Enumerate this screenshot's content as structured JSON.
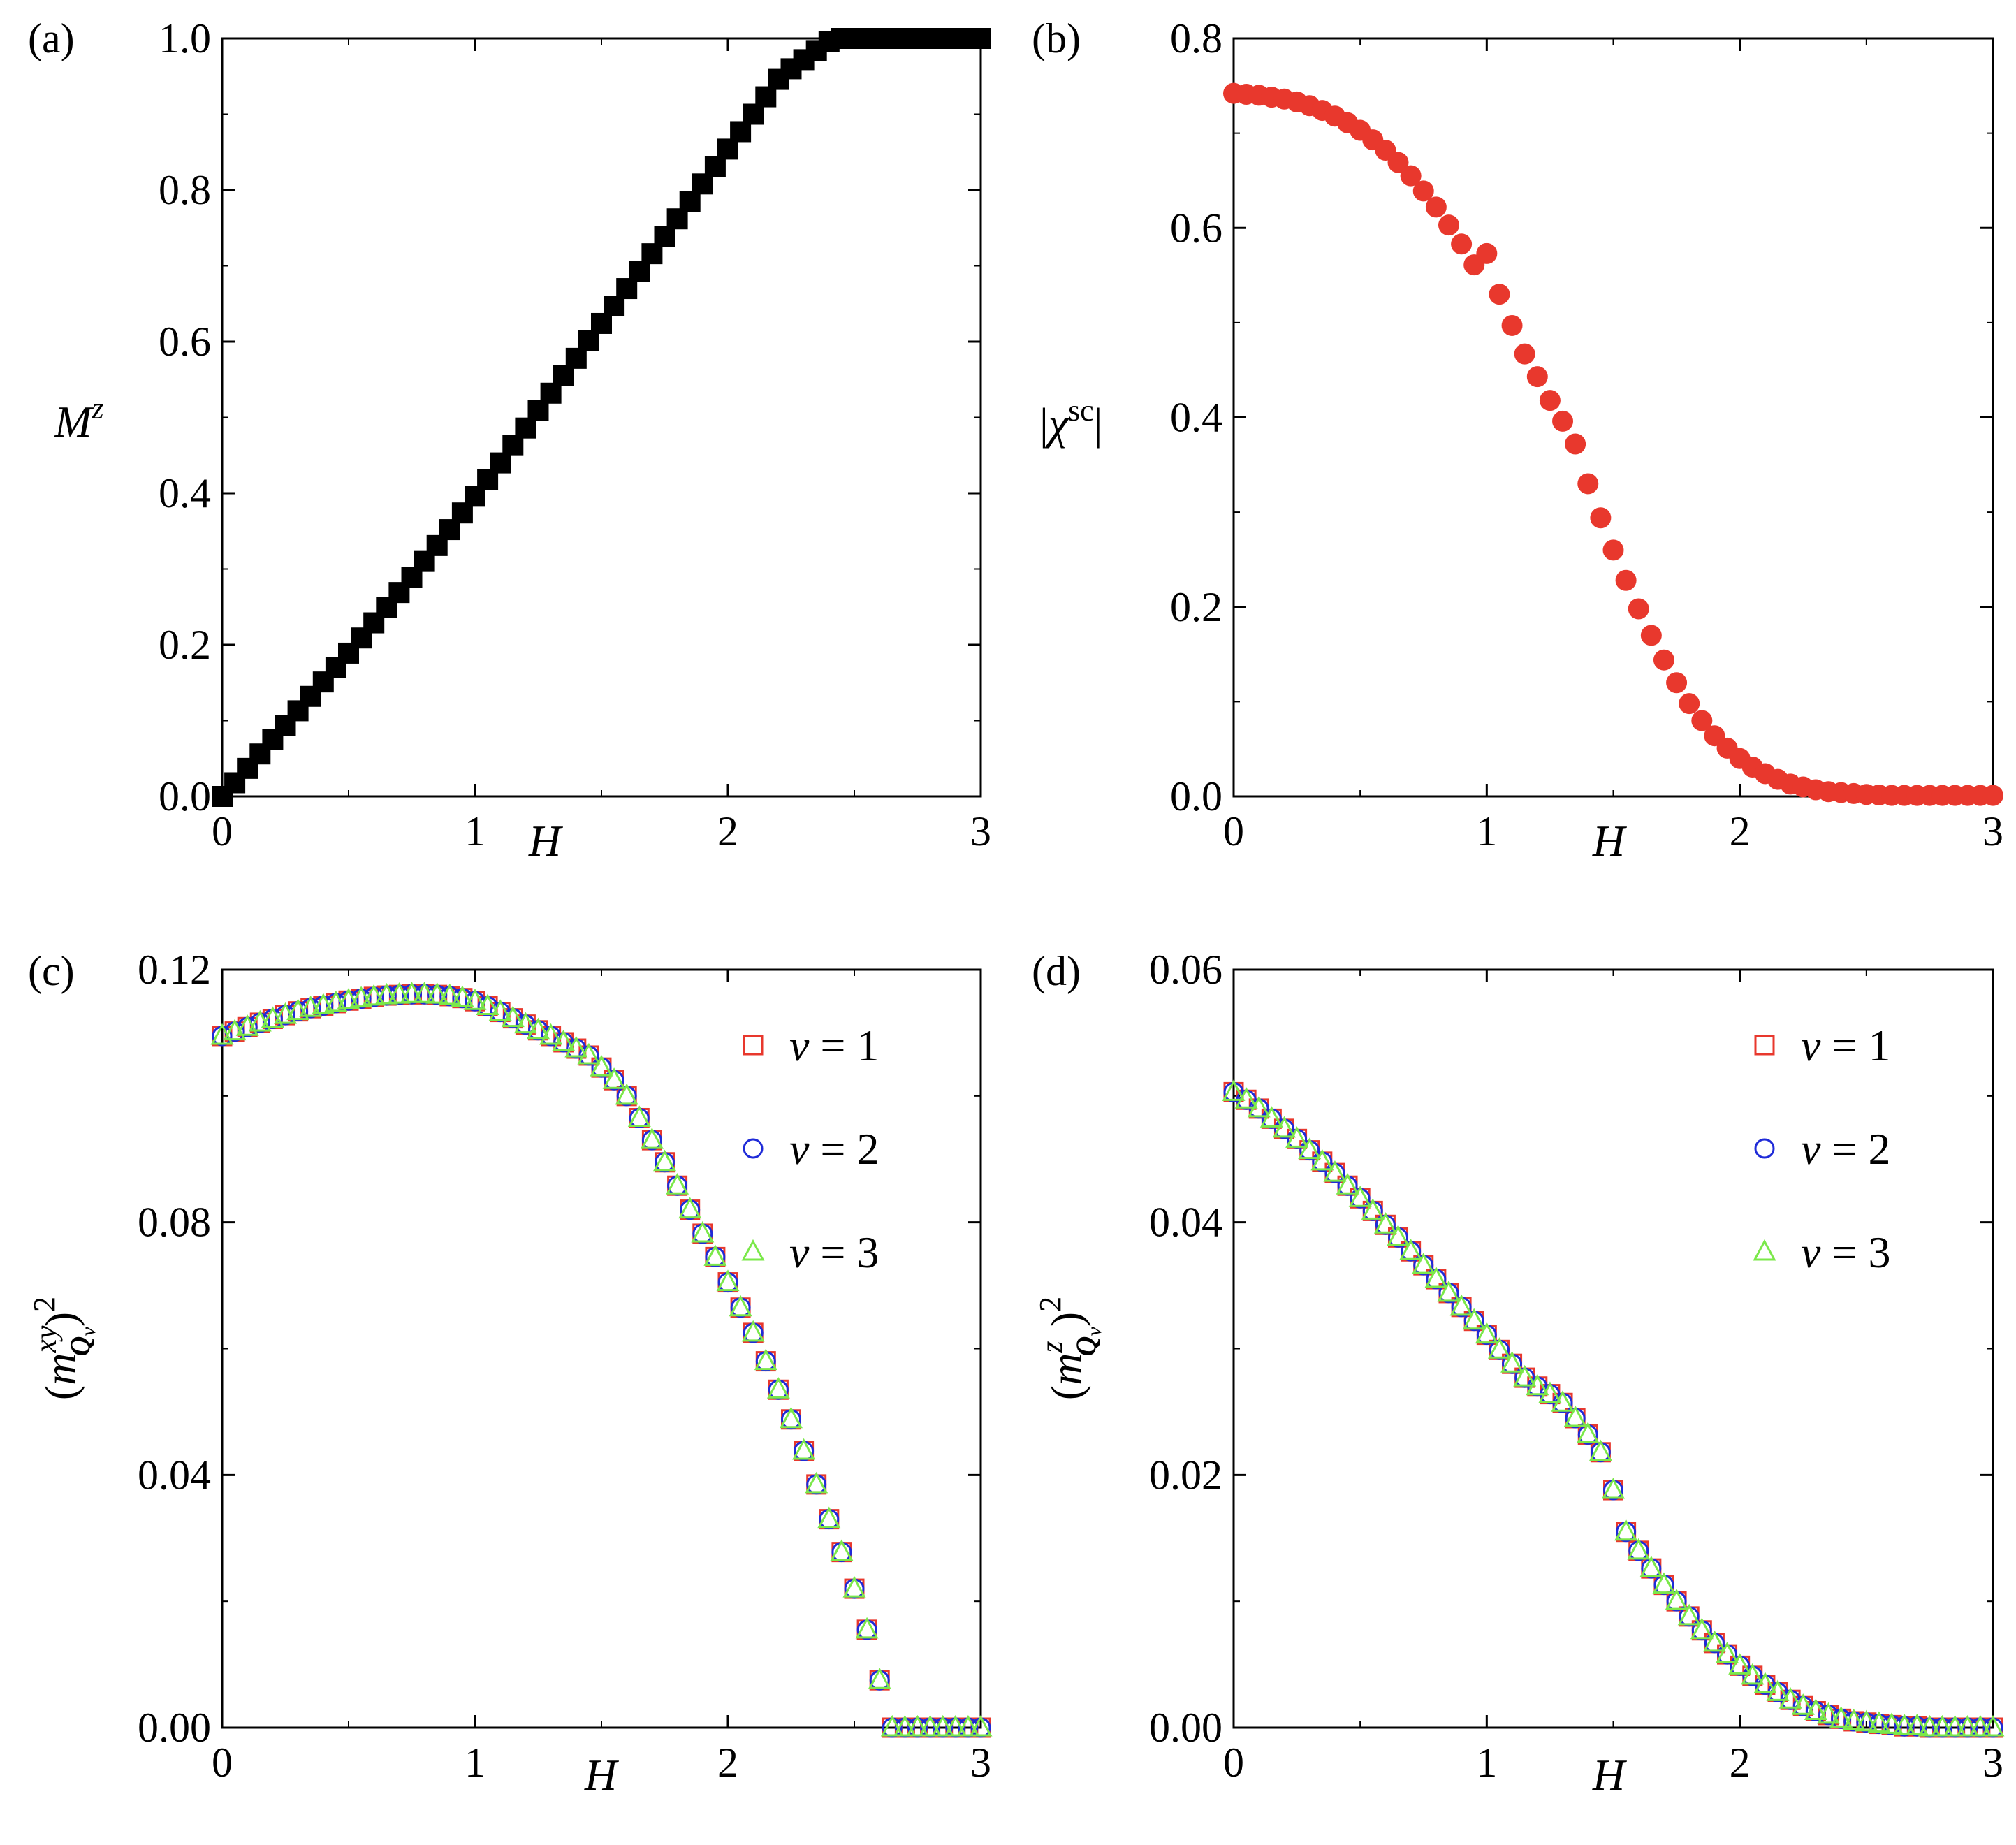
{
  "figure": {
    "panels": [
      {
        "id": "a",
        "label": "(a)",
        "ylabel": "Mz",
        "xlabel": "H"
      },
      {
        "id": "b",
        "label": "(b)",
        "ylabel": "|χsc|",
        "xlabel": "H"
      },
      {
        "id": "c",
        "label": "(c)",
        "ylabel": "(mxyQν)2",
        "xlabel": "H"
      },
      {
        "id": "d",
        "label": "(d)",
        "ylabel": "(mzQν)2",
        "xlabel": "H"
      }
    ]
  },
  "chart_data": [
    {
      "panel": "a",
      "type": "scatter",
      "title": "(a)",
      "xlabel": "H",
      "ylabel": "M^z",
      "xlim": [
        0,
        3
      ],
      "ylim": [
        0,
        1
      ],
      "xticks": [
        0,
        1,
        2,
        3
      ],
      "xtick_labels": [
        "0",
        "1",
        "2",
        "3"
      ],
      "yticks": [
        0,
        0.2,
        0.4,
        0.6,
        0.8,
        1.0
      ],
      "ytick_labels": [
        "0.0",
        "0.2",
        "0.4",
        "0.6",
        "0.8",
        "1.0"
      ],
      "grid": false,
      "series": [
        {
          "name": "M^z",
          "marker": "filled-square",
          "color": "#000000",
          "x": [
            0,
            0.05,
            0.1,
            0.15,
            0.2,
            0.25,
            0.3,
            0.35,
            0.4,
            0.45,
            0.5,
            0.55,
            0.6,
            0.65,
            0.7,
            0.75,
            0.8,
            0.85,
            0.9,
            0.95,
            1.0,
            1.05,
            1.1,
            1.15,
            1.2,
            1.25,
            1.3,
            1.35,
            1.4,
            1.45,
            1.5,
            1.55,
            1.6,
            1.65,
            1.7,
            1.75,
            1.8,
            1.85,
            1.9,
            1.95,
            2.0,
            2.05,
            2.1,
            2.15,
            2.2,
            2.25,
            2.3,
            2.35,
            2.4,
            2.45,
            2.5,
            2.55,
            2.6,
            2.65,
            2.7,
            2.75,
            2.8,
            2.85,
            2.9,
            2.95,
            3.0
          ],
          "y": [
            0.0,
            0.018,
            0.037,
            0.056,
            0.075,
            0.094,
            0.113,
            0.132,
            0.151,
            0.17,
            0.189,
            0.209,
            0.229,
            0.249,
            0.269,
            0.289,
            0.31,
            0.331,
            0.352,
            0.374,
            0.396,
            0.418,
            0.44,
            0.463,
            0.486,
            0.509,
            0.532,
            0.555,
            0.578,
            0.601,
            0.624,
            0.647,
            0.67,
            0.693,
            0.716,
            0.739,
            0.762,
            0.785,
            0.808,
            0.831,
            0.854,
            0.877,
            0.9,
            0.923,
            0.946,
            0.96,
            0.972,
            0.984,
            0.996,
            1.0,
            1.0,
            1.0,
            1.0,
            1.0,
            1.0,
            1.0,
            1.0,
            1.0,
            1.0,
            1.0,
            1.0
          ]
        }
      ]
    },
    {
      "panel": "b",
      "type": "scatter",
      "title": "(b)",
      "xlabel": "H",
      "ylabel": "|χ^sc|",
      "xlim": [
        0,
        3
      ],
      "ylim": [
        0,
        0.8
      ],
      "xticks": [
        0,
        1,
        2,
        3
      ],
      "xtick_labels": [
        "0",
        "1",
        "2",
        "3"
      ],
      "yticks": [
        0,
        0.2,
        0.4,
        0.6,
        0.8
      ],
      "ytick_labels": [
        "0.0",
        "0.2",
        "0.4",
        "0.6",
        "0.8"
      ],
      "grid": false,
      "series": [
        {
          "name": "|χ^sc|",
          "marker": "filled-circle",
          "color": "#e8382d",
          "x": [
            0,
            0.05,
            0.1,
            0.15,
            0.2,
            0.25,
            0.3,
            0.35,
            0.4,
            0.45,
            0.5,
            0.55,
            0.6,
            0.65,
            0.7,
            0.75,
            0.8,
            0.85,
            0.9,
            0.95,
            1.0,
            1.05,
            1.1,
            1.15,
            1.2,
            1.25,
            1.3,
            1.35,
            1.4,
            1.45,
            1.5,
            1.55,
            1.6,
            1.65,
            1.7,
            1.75,
            1.8,
            1.85,
            1.9,
            1.95,
            2.0,
            2.05,
            2.1,
            2.15,
            2.2,
            2.25,
            2.3,
            2.35,
            2.4,
            2.45,
            2.5,
            2.55,
            2.6,
            2.65,
            2.7,
            2.75,
            2.8,
            2.85,
            2.9,
            2.95,
            3.0
          ],
          "y": [
            0.742,
            0.741,
            0.74,
            0.738,
            0.736,
            0.733,
            0.729,
            0.724,
            0.718,
            0.711,
            0.703,
            0.693,
            0.682,
            0.669,
            0.655,
            0.639,
            0.622,
            0.603,
            0.583,
            0.561,
            0.573,
            0.53,
            0.497,
            0.467,
            0.443,
            0.418,
            0.396,
            0.372,
            0.33,
            0.294,
            0.26,
            0.228,
            0.198,
            0.17,
            0.144,
            0.12,
            0.098,
            0.08,
            0.064,
            0.051,
            0.04,
            0.031,
            0.024,
            0.018,
            0.013,
            0.01,
            0.007,
            0.005,
            0.004,
            0.003,
            0.002,
            0.0015,
            0.001,
            0.001,
            0.001,
            0.001,
            0.001,
            0.001,
            0.001,
            0.001,
            0.001
          ]
        }
      ]
    },
    {
      "panel": "c",
      "type": "scatter",
      "title": "(c)",
      "xlabel": "H",
      "ylabel": "(m^{xy}_{Q_ν})^2",
      "xlim": [
        0,
        3
      ],
      "ylim": [
        0,
        0.12
      ],
      "xticks": [
        0,
        1,
        2,
        3
      ],
      "xtick_labels": [
        "0",
        "1",
        "2",
        "3"
      ],
      "yticks": [
        0,
        0.04,
        0.08,
        0.12
      ],
      "ytick_labels": [
        "0.00",
        "0.04",
        "0.08",
        "0.12"
      ],
      "grid": false,
      "legend": "right",
      "x": [
        0,
        0.05,
        0.1,
        0.15,
        0.2,
        0.25,
        0.3,
        0.35,
        0.4,
        0.45,
        0.5,
        0.55,
        0.6,
        0.65,
        0.7,
        0.75,
        0.8,
        0.85,
        0.9,
        0.95,
        1.0,
        1.05,
        1.1,
        1.15,
        1.2,
        1.25,
        1.3,
        1.35,
        1.4,
        1.45,
        1.5,
        1.55,
        1.6,
        1.65,
        1.7,
        1.75,
        1.8,
        1.85,
        1.9,
        1.95,
        2.0,
        2.05,
        2.1,
        2.15,
        2.2,
        2.25,
        2.3,
        2.35,
        2.4,
        2.45,
        2.5,
        2.55,
        2.6,
        2.65,
        2.7,
        2.75,
        2.8,
        2.85,
        2.9,
        2.95,
        3.0
      ],
      "series": [
        {
          "name": "ν = 1",
          "legend_prefix": "ν",
          "legend_value": "= 1",
          "marker": "open-square",
          "color": "#e8382d",
          "y": [
            0.1095,
            0.1102,
            0.1109,
            0.1116,
            0.1122,
            0.1128,
            0.1134,
            0.1139,
            0.1143,
            0.1147,
            0.1151,
            0.1154,
            0.1157,
            0.1159,
            0.116,
            0.1161,
            0.1161,
            0.116,
            0.1158,
            0.1155,
            0.115,
            0.1142,
            0.1133,
            0.1123,
            0.1113,
            0.1104,
            0.1095,
            0.1085,
            0.1075,
            0.1064,
            0.1045,
            0.1025,
            0.1,
            0.0965,
            0.093,
            0.0895,
            0.0858,
            0.082,
            0.0782,
            0.0745,
            0.0705,
            0.0665,
            0.0625,
            0.058,
            0.0535,
            0.0488,
            0.0438,
            0.0385,
            0.033,
            0.0278,
            0.022,
            0.0155,
            0.0075,
            0.0,
            0.0,
            0.0,
            0.0,
            0.0,
            0.0,
            0.0,
            0.0
          ]
        },
        {
          "name": "ν = 2",
          "legend_prefix": "ν",
          "legend_value": "= 2",
          "marker": "open-circle",
          "color": "#1f2bd8",
          "y": [
            0.1095,
            0.1102,
            0.1109,
            0.1116,
            0.1122,
            0.1128,
            0.1134,
            0.1139,
            0.1143,
            0.1147,
            0.1151,
            0.1154,
            0.1157,
            0.1159,
            0.116,
            0.1161,
            0.1161,
            0.116,
            0.1158,
            0.1155,
            0.115,
            0.1142,
            0.1133,
            0.1123,
            0.1113,
            0.1104,
            0.1095,
            0.1085,
            0.1075,
            0.1064,
            0.1045,
            0.1025,
            0.1,
            0.0965,
            0.093,
            0.0895,
            0.0858,
            0.082,
            0.0782,
            0.0745,
            0.0705,
            0.0665,
            0.0625,
            0.058,
            0.0535,
            0.0488,
            0.0438,
            0.0385,
            0.033,
            0.0278,
            0.022,
            0.0155,
            0.0075,
            0.0,
            0.0,
            0.0,
            0.0,
            0.0,
            0.0,
            0.0,
            0.0
          ]
        },
        {
          "name": "ν = 3",
          "legend_prefix": "ν",
          "legend_value": "= 3",
          "marker": "open-triangle",
          "color": "#7be84a",
          "y": [
            0.1095,
            0.1102,
            0.1109,
            0.1116,
            0.1122,
            0.1128,
            0.1134,
            0.1139,
            0.1143,
            0.1147,
            0.1151,
            0.1154,
            0.1157,
            0.1159,
            0.116,
            0.1161,
            0.1161,
            0.116,
            0.1158,
            0.1155,
            0.115,
            0.1142,
            0.1133,
            0.1123,
            0.1113,
            0.1104,
            0.1095,
            0.1085,
            0.1075,
            0.1064,
            0.1045,
            0.1025,
            0.1,
            0.0965,
            0.093,
            0.0895,
            0.0858,
            0.082,
            0.0782,
            0.0745,
            0.0705,
            0.0665,
            0.0625,
            0.058,
            0.0535,
            0.0488,
            0.0438,
            0.0385,
            0.033,
            0.0278,
            0.022,
            0.0155,
            0.0075,
            0.0,
            0.0,
            0.0,
            0.0,
            0.0,
            0.0,
            0.0,
            0.0
          ]
        }
      ]
    },
    {
      "panel": "d",
      "type": "scatter",
      "title": "(d)",
      "xlabel": "H",
      "ylabel": "(m^{z}_{Q_ν})^2",
      "xlim": [
        0,
        3
      ],
      "ylim": [
        0,
        0.06
      ],
      "xticks": [
        0,
        1,
        2,
        3
      ],
      "xtick_labels": [
        "0",
        "1",
        "2",
        "3"
      ],
      "yticks": [
        0,
        0.02,
        0.04,
        0.06
      ],
      "ytick_labels": [
        "0.00",
        "0.02",
        "0.04",
        "0.06"
      ],
      "grid": false,
      "legend": "right",
      "x": [
        0,
        0.05,
        0.1,
        0.15,
        0.2,
        0.25,
        0.3,
        0.35,
        0.4,
        0.45,
        0.5,
        0.55,
        0.6,
        0.65,
        0.7,
        0.75,
        0.8,
        0.85,
        0.9,
        0.95,
        1.0,
        1.05,
        1.1,
        1.15,
        1.2,
        1.25,
        1.3,
        1.35,
        1.4,
        1.45,
        1.5,
        1.55,
        1.6,
        1.65,
        1.7,
        1.75,
        1.8,
        1.85,
        1.9,
        1.95,
        2.0,
        2.05,
        2.1,
        2.15,
        2.2,
        2.25,
        2.3,
        2.35,
        2.4,
        2.45,
        2.5,
        2.55,
        2.6,
        2.65,
        2.7,
        2.75,
        2.8,
        2.85,
        2.9,
        2.95,
        3.0
      ],
      "series": [
        {
          "name": "ν = 1",
          "legend_prefix": "ν",
          "legend_value": "= 1",
          "marker": "open-square",
          "color": "#e8382d",
          "y": [
            0.0503,
            0.0497,
            0.049,
            0.0482,
            0.0474,
            0.0466,
            0.0457,
            0.0448,
            0.0439,
            0.0429,
            0.0419,
            0.0409,
            0.0398,
            0.0388,
            0.0377,
            0.0366,
            0.0355,
            0.0344,
            0.0333,
            0.0322,
            0.0311,
            0.0299,
            0.0288,
            0.0277,
            0.027,
            0.0264,
            0.0257,
            0.0245,
            0.0232,
            0.0218,
            0.0188,
            0.0155,
            0.014,
            0.0126,
            0.0113,
            0.01,
            0.0088,
            0.0077,
            0.0067,
            0.0058,
            0.0049,
            0.0041,
            0.0034,
            0.0028,
            0.0022,
            0.0017,
            0.0013,
            0.001,
            0.0007,
            0.0005,
            0.0004,
            0.0003,
            0.0002,
            0.0001,
            0.0001,
            0.0,
            0.0,
            0.0,
            0.0,
            0.0,
            0.0
          ]
        },
        {
          "name": "ν = 2",
          "legend_prefix": "ν",
          "legend_value": "= 2",
          "marker": "open-circle",
          "color": "#1f2bd8",
          "y": [
            0.0503,
            0.0497,
            0.049,
            0.0482,
            0.0474,
            0.0466,
            0.0457,
            0.0448,
            0.0439,
            0.0429,
            0.0419,
            0.0409,
            0.0398,
            0.0388,
            0.0377,
            0.0366,
            0.0355,
            0.0344,
            0.0333,
            0.0322,
            0.0311,
            0.0299,
            0.0288,
            0.0277,
            0.027,
            0.0264,
            0.0257,
            0.0245,
            0.0232,
            0.0218,
            0.0188,
            0.0155,
            0.014,
            0.0126,
            0.0113,
            0.01,
            0.0088,
            0.0077,
            0.0067,
            0.0058,
            0.0049,
            0.0041,
            0.0034,
            0.0028,
            0.0022,
            0.0017,
            0.0013,
            0.001,
            0.0007,
            0.0005,
            0.0004,
            0.0003,
            0.0002,
            0.0001,
            0.0001,
            0.0,
            0.0,
            0.0,
            0.0,
            0.0,
            0.0
          ]
        },
        {
          "name": "ν = 3",
          "legend_prefix": "ν",
          "legend_value": "= 3",
          "marker": "open-triangle",
          "color": "#7be84a",
          "y": [
            0.0503,
            0.0497,
            0.049,
            0.0482,
            0.0474,
            0.0466,
            0.0457,
            0.0448,
            0.0439,
            0.0429,
            0.0419,
            0.0409,
            0.0398,
            0.0388,
            0.0377,
            0.0366,
            0.0355,
            0.0344,
            0.0333,
            0.0322,
            0.0311,
            0.0299,
            0.0288,
            0.0277,
            0.027,
            0.0264,
            0.0257,
            0.0245,
            0.0232,
            0.0218,
            0.0188,
            0.0155,
            0.014,
            0.0126,
            0.0113,
            0.01,
            0.0088,
            0.0077,
            0.0067,
            0.0058,
            0.0049,
            0.0041,
            0.0034,
            0.0028,
            0.0022,
            0.0017,
            0.0013,
            0.001,
            0.0007,
            0.0005,
            0.0004,
            0.0003,
            0.0002,
            0.0001,
            0.0001,
            0.0,
            0.0,
            0.0,
            0.0,
            0.0,
            0.0
          ]
        }
      ]
    }
  ]
}
